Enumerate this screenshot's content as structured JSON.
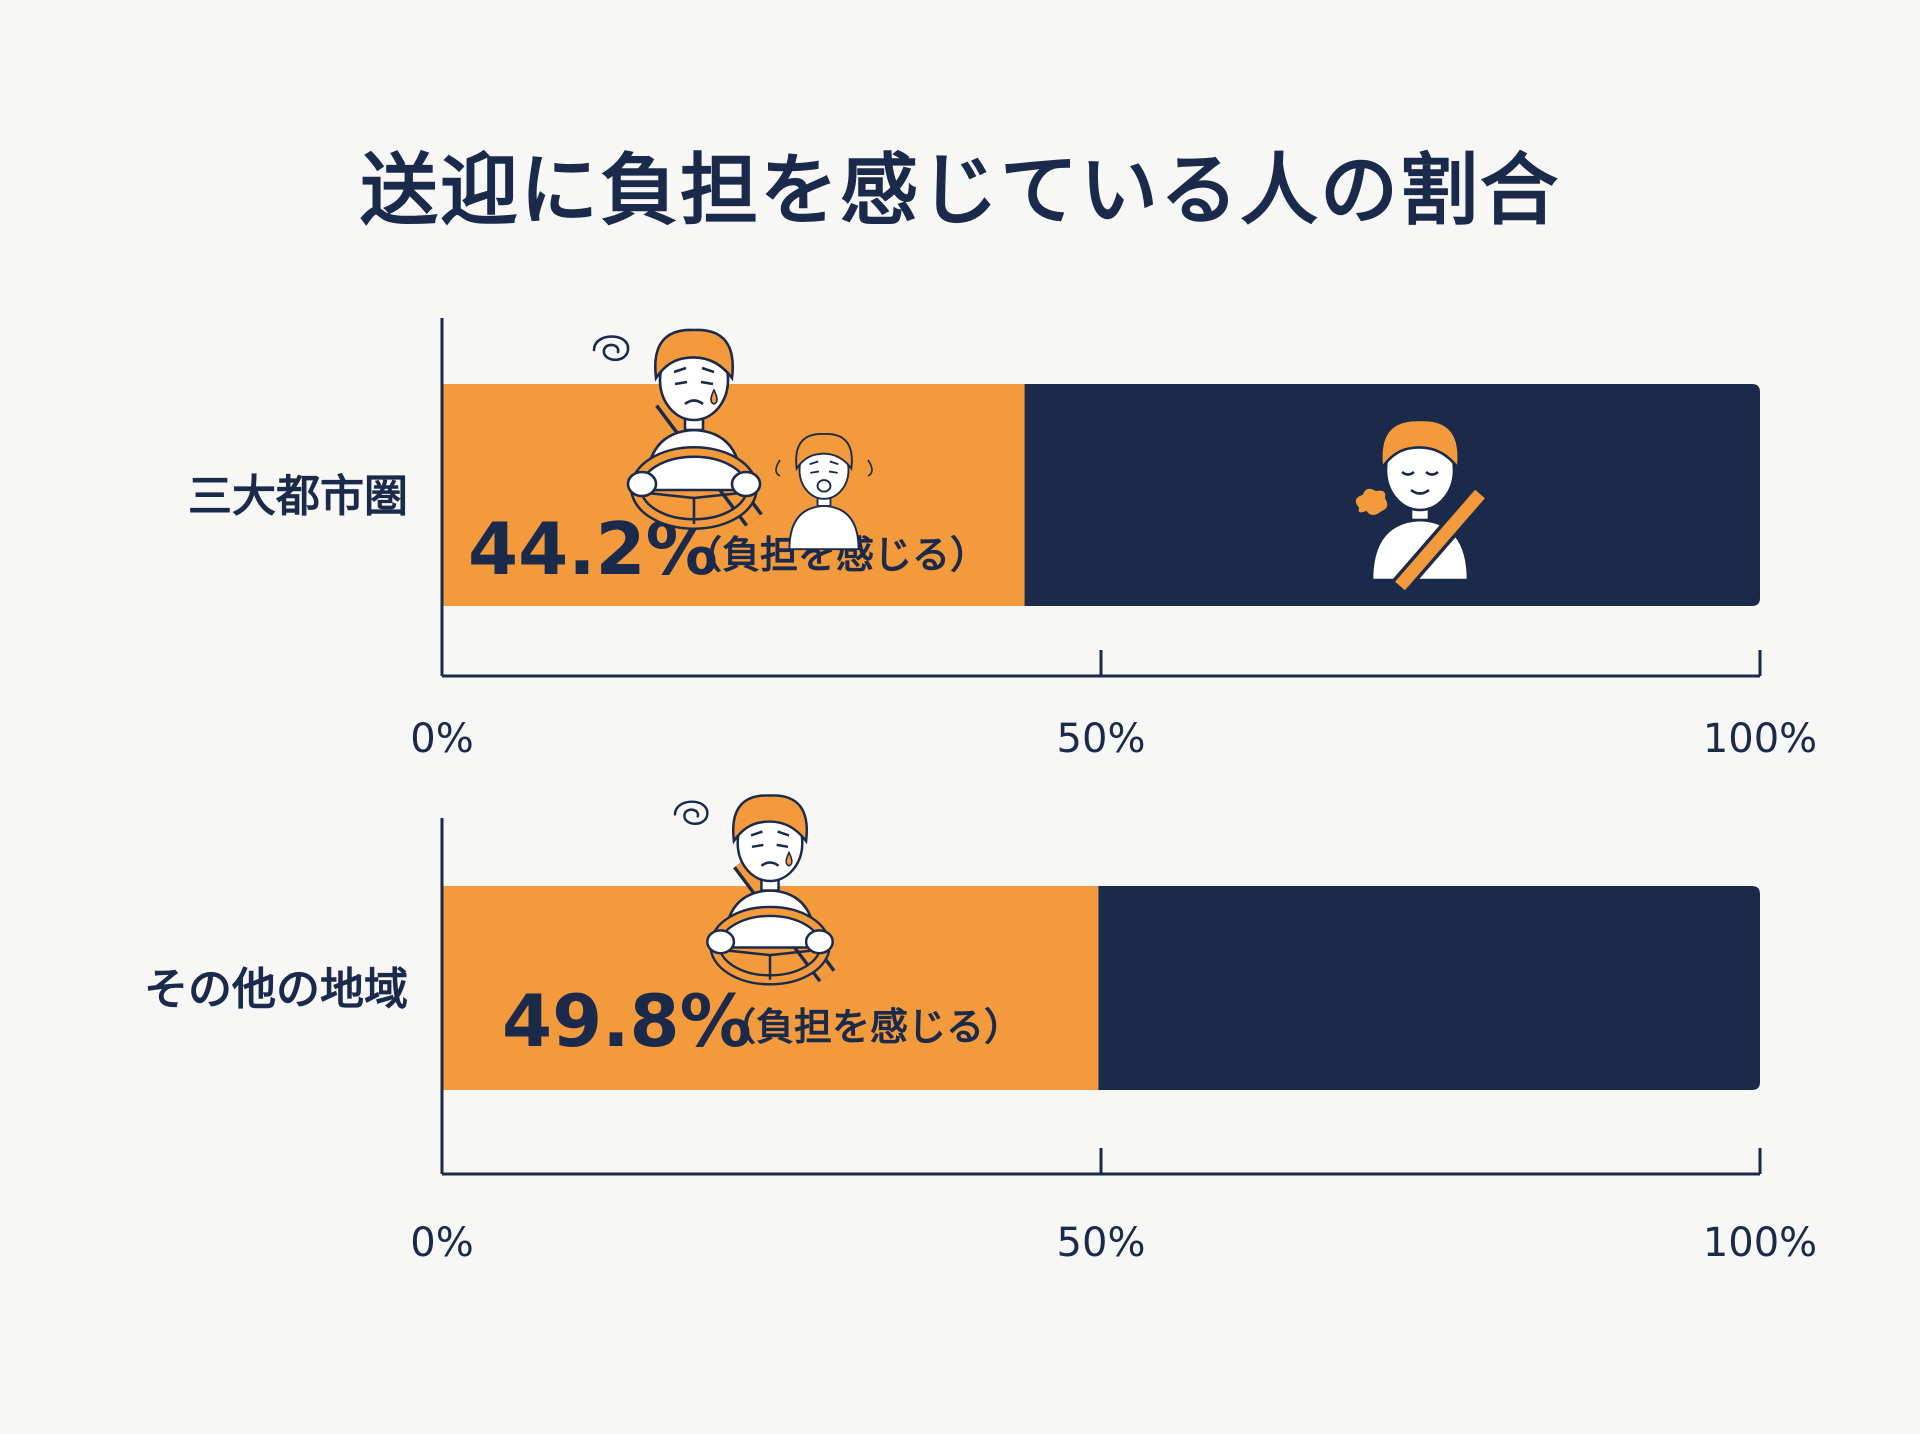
{
  "title": "送迎に負担を感じている人の割合",
  "colors": {
    "burden": "#f39a3d",
    "rest": "#1b2a4a",
    "axis": "#1b2a4a",
    "background": "#f7f7f5",
    "text": "#1b2a4a"
  },
  "icons": {
    "row1_burden": "stressed-driver-and-crying-child-icon",
    "row1_rest": "relaxed-passenger-icon",
    "row2_burden": "stressed-driver-icon"
  },
  "chart_data": {
    "type": "bar",
    "orientation": "horizontal",
    "stacked": true,
    "title": "送迎に負担を感じている人の割合",
    "categories": [
      "三大都市圏",
      "その他の地域"
    ],
    "series": [
      {
        "name": "負担を感じる",
        "values": [
          44.2,
          49.8
        ]
      }
    ],
    "value_labels": [
      "44.2%",
      "49.8%"
    ],
    "value_note": "（負担を感じる）",
    "xlim": [
      0,
      100
    ],
    "x_ticks": [
      0,
      50,
      100
    ],
    "x_tick_labels": [
      "0%",
      "50%",
      "100%"
    ],
    "grid": false
  }
}
